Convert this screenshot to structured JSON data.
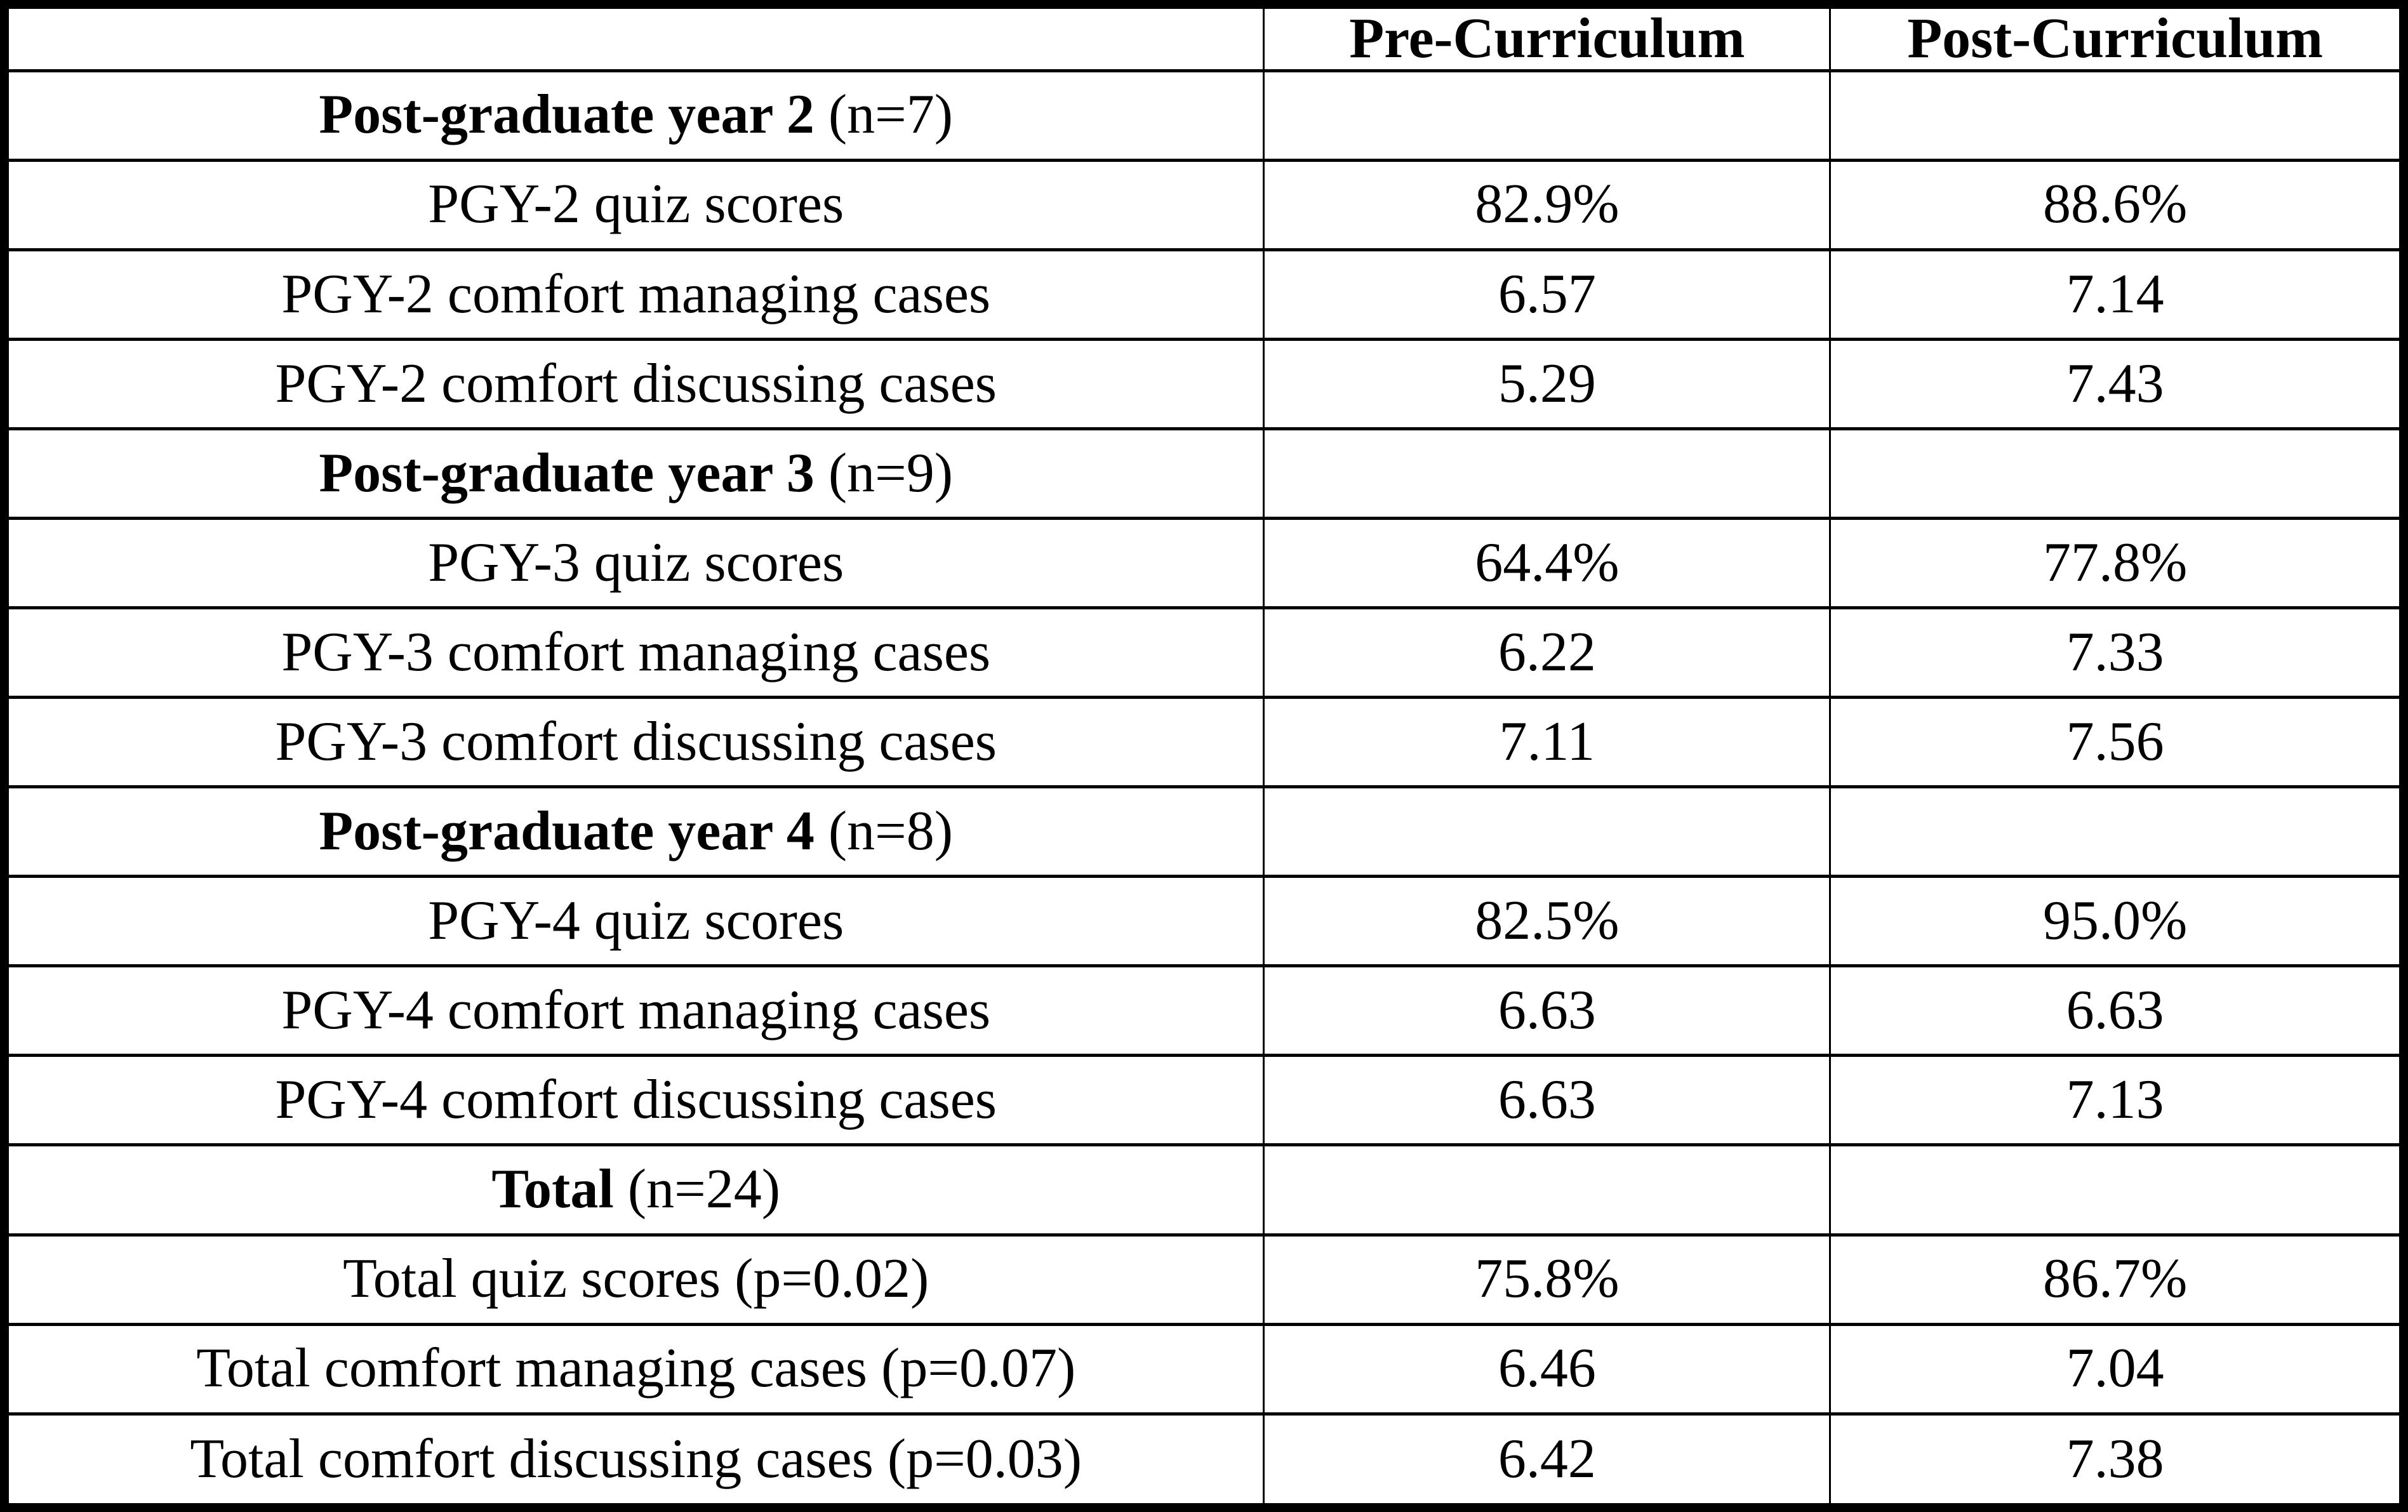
{
  "table": {
    "columns": [
      "",
      "Pre-Curriculum",
      "Post-Curriculum"
    ],
    "rows": [
      {
        "bold": "Post-graduate year 2",
        "rest": " (n=7)",
        "pre": "",
        "post": ""
      },
      {
        "bold": "",
        "rest": "PGY-2 quiz scores",
        "pre": "82.9%",
        "post": "88.6%"
      },
      {
        "bold": "",
        "rest": "PGY-2 comfort managing cases",
        "pre": "6.57",
        "post": "7.14"
      },
      {
        "bold": "",
        "rest": "PGY-2 comfort discussing cases",
        "pre": "5.29",
        "post": "7.43"
      },
      {
        "bold": "Post-graduate year 3",
        "rest": " (n=9)",
        "pre": "",
        "post": ""
      },
      {
        "bold": "",
        "rest": "PGY-3 quiz scores",
        "pre": "64.4%",
        "post": "77.8%"
      },
      {
        "bold": "",
        "rest": "PGY-3 comfort managing cases",
        "pre": "6.22",
        "post": "7.33"
      },
      {
        "bold": "",
        "rest": "PGY-3 comfort discussing cases",
        "pre": "7.11",
        "post": "7.56"
      },
      {
        "bold": "Post-graduate year 4",
        "rest": " (n=8)",
        "pre": "",
        "post": ""
      },
      {
        "bold": "",
        "rest": "PGY-4 quiz scores",
        "pre": "82.5%",
        "post": "95.0%"
      },
      {
        "bold": "",
        "rest": "PGY-4 comfort managing cases",
        "pre": "6.63",
        "post": "6.63"
      },
      {
        "bold": "",
        "rest": "PGY-4 comfort discussing cases",
        "pre": "6.63",
        "post": "7.13"
      },
      {
        "bold": "Total",
        "rest": " (n=24)",
        "pre": "",
        "post": ""
      },
      {
        "bold": "",
        "rest": "Total quiz scores (p=0.02)",
        "pre": "75.8%",
        "post": "86.7%"
      },
      {
        "bold": "",
        "rest": "Total comfort managing cases (p=0.07)",
        "pre": "6.46",
        "post": "7.04"
      },
      {
        "bold": "",
        "rest": "Total comfort discussing cases (p=0.03)",
        "pre": "6.42",
        "post": "7.38"
      }
    ]
  }
}
